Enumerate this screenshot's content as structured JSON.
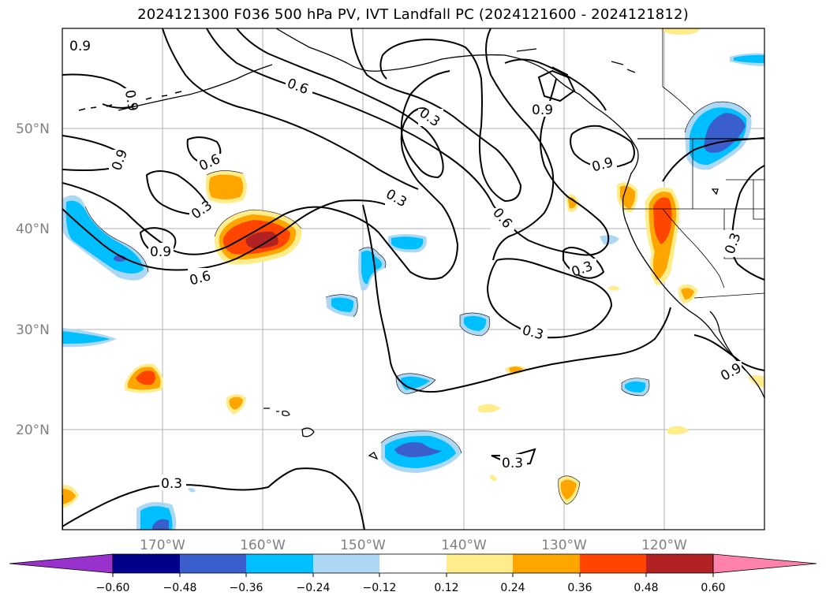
{
  "title": "2024121300 F036 500 hPa PV, IVT Landfall PC (2024121600 - 2024121812)",
  "lat_ticks": [
    "50°N",
    "40°N",
    "30°N",
    "20°N"
  ],
  "lon_ticks": [
    "170°W",
    "160°W",
    "150°W",
    "140°W",
    "130°W",
    "120°W"
  ],
  "contour_labels": [
    "0.9",
    "0.9",
    "0.9",
    "0.6",
    "0.3",
    "0.9",
    "0.6",
    "0.6",
    "0.3",
    "0.3",
    "0.6",
    "0.9",
    "0.9",
    "0.3",
    "0.3",
    "0.3",
    "0.3",
    "0.3",
    "0.9"
  ],
  "colorbar": {
    "ticks": [
      "−0.60",
      "−0.48",
      "−0.36",
      "−0.24",
      "−0.12",
      "0.12",
      "0.24",
      "0.36",
      "0.48",
      "0.60"
    ],
    "colors": [
      "#9932cc",
      "#00008b",
      "#3a5fcd",
      "#00bfff",
      "#add8f5",
      "#ffffff",
      "#ffec8b",
      "#ffa500",
      "#ff4500",
      "#b22222",
      "#ff82ab"
    ]
  }
}
